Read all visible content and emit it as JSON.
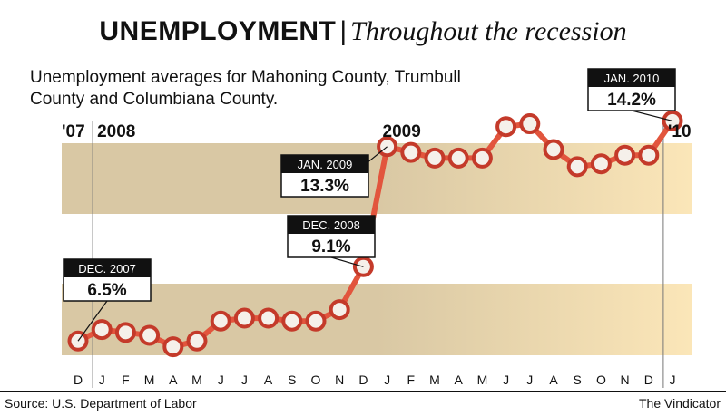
{
  "header": {
    "title": "UNEMPLOYMENT",
    "separator": "|",
    "subtitle": "Throughout the recession",
    "description": "Unemployment averages for Mahoning County,  Trumbull County and Columbiana County."
  },
  "footer": {
    "source": "Source: U.S. Department of Labor",
    "credit": "The Vindicator"
  },
  "colors": {
    "band_light": "#fbe6b8",
    "band_dark": "#d9c8a4",
    "line": "#e2553d",
    "marker_fill": "#f5f0ea",
    "marker_stroke": "#c43a2a",
    "callout_header": "#111111"
  },
  "chart_data": {
    "type": "line",
    "unit": "%",
    "year_labels": [
      {
        "label": "'07",
        "index": 0
      },
      {
        "label": "2008",
        "index": 1
      },
      {
        "label": "2009",
        "index": 13
      },
      {
        "label": "'10",
        "index": 25
      }
    ],
    "categories": [
      "D",
      "J",
      "F",
      "M",
      "A",
      "M",
      "J",
      "J",
      "A",
      "S",
      "O",
      "N",
      "D",
      "J",
      "F",
      "M",
      "A",
      "M",
      "J",
      "J",
      "A",
      "S",
      "O",
      "N",
      "D",
      "J"
    ],
    "values": [
      6.5,
      6.9,
      6.8,
      6.7,
      6.3,
      6.5,
      7.2,
      7.3,
      7.3,
      7.2,
      7.2,
      7.6,
      9.1,
      13.3,
      13.1,
      12.9,
      12.9,
      12.9,
      14.0,
      14.1,
      13.2,
      12.6,
      12.7,
      13.0,
      13.0,
      14.2
    ],
    "ylim": [
      5.0,
      15.5
    ],
    "grid_bands": true,
    "callouts": [
      {
        "index": 0,
        "date": "DEC. 2007",
        "value": "6.5%"
      },
      {
        "index": 12,
        "date": "DEC. 2008",
        "value": "9.1%"
      },
      {
        "index": 13,
        "date": "JAN. 2009",
        "value": "13.3%"
      },
      {
        "index": 25,
        "date": "JAN. 2010",
        "value": "14.2%"
      }
    ]
  }
}
